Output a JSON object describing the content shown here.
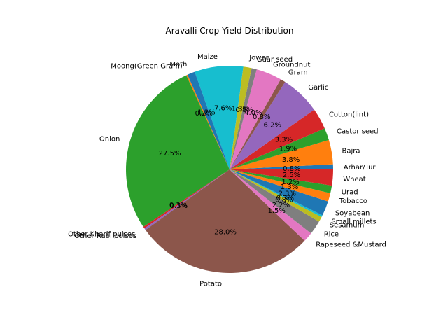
{
  "chart_data": {
    "type": "pie",
    "title": "Aravalli Crop Yield Distribution",
    "start_angle_deg": 0,
    "direction": "counterclockwise",
    "slices": [
      {
        "label": "Arhar/Tur",
        "value": 0.8,
        "pct_label": "0.8%",
        "color": "#1f77b4"
      },
      {
        "label": "Bajra",
        "value": 3.8,
        "pct_label": "3.8%",
        "color": "#ff7f0e"
      },
      {
        "label": "Castor seed",
        "value": 1.9,
        "pct_label": "1.9%",
        "color": "#2ca02c"
      },
      {
        "label": "Cotton(lint)",
        "value": 3.3,
        "pct_label": "3.3%",
        "color": "#d62728"
      },
      {
        "label": "Garlic",
        "value": 6.2,
        "pct_label": "6.2%",
        "color": "#9467bd"
      },
      {
        "label": "Gram",
        "value": 0.8,
        "pct_label": "0.8%",
        "color": "#8c564b"
      },
      {
        "label": "Groundnut",
        "value": 4.0,
        "pct_label": "4.0%",
        "color": "#e377c2"
      },
      {
        "label": "Guar seed",
        "value": 0.8,
        "pct_label": "0.8%",
        "color": "#7f7f7f"
      },
      {
        "label": "Jowar",
        "value": 1.3,
        "pct_label": "1.3%",
        "color": "#bcbd22"
      },
      {
        "label": "Maize",
        "value": 7.6,
        "pct_label": "7.6%",
        "color": "#17becf"
      },
      {
        "label": "Moth",
        "value": 1.2,
        "pct_label": "1.2%",
        "color": "#1f77b4"
      },
      {
        "label": "Moong(Green Gram)",
        "value": 0.2,
        "pct_label": "0.2%",
        "color": "#ff7f0e"
      },
      {
        "label": "Onion",
        "value": 27.5,
        "pct_label": "27.5%",
        "color": "#2ca02c"
      },
      {
        "label": "Other Kharif pulses",
        "value": 0.3,
        "pct_label": "0.3%",
        "color": "#d62728"
      },
      {
        "label": "Other Rabi pulses",
        "value": 0.3,
        "pct_label": "0.3%",
        "color": "#9467bd"
      },
      {
        "label": "Potato",
        "value": 28.0,
        "pct_label": "28.0%",
        "color": "#8c564b"
      },
      {
        "label": "Rapeseed &Mustard",
        "value": 1.5,
        "pct_label": "1.5%",
        "color": "#e377c2"
      },
      {
        "label": "Rice",
        "value": 2.2,
        "pct_label": "2.2%",
        "color": "#7f7f7f"
      },
      {
        "label": "Sesamum",
        "value": 0.8,
        "pct_label": "0.8%",
        "color": "#bcbd22"
      },
      {
        "label": "Small millets",
        "value": 0.3,
        "pct_label": "0.3%",
        "color": "#17becf"
      },
      {
        "label": "Soyabean",
        "value": 2.3,
        "pct_label": "2.3%",
        "color": "#1f77b4"
      },
      {
        "label": "Tobacco",
        "value": 1.3,
        "pct_label": "1.3%",
        "color": "#ff7f0e"
      },
      {
        "label": "Urad",
        "value": 1.2,
        "pct_label": "1.2%",
        "color": "#2ca02c"
      },
      {
        "label": "Wheat",
        "value": 2.5,
        "pct_label": "2.5%",
        "color": "#d62728"
      }
    ]
  }
}
